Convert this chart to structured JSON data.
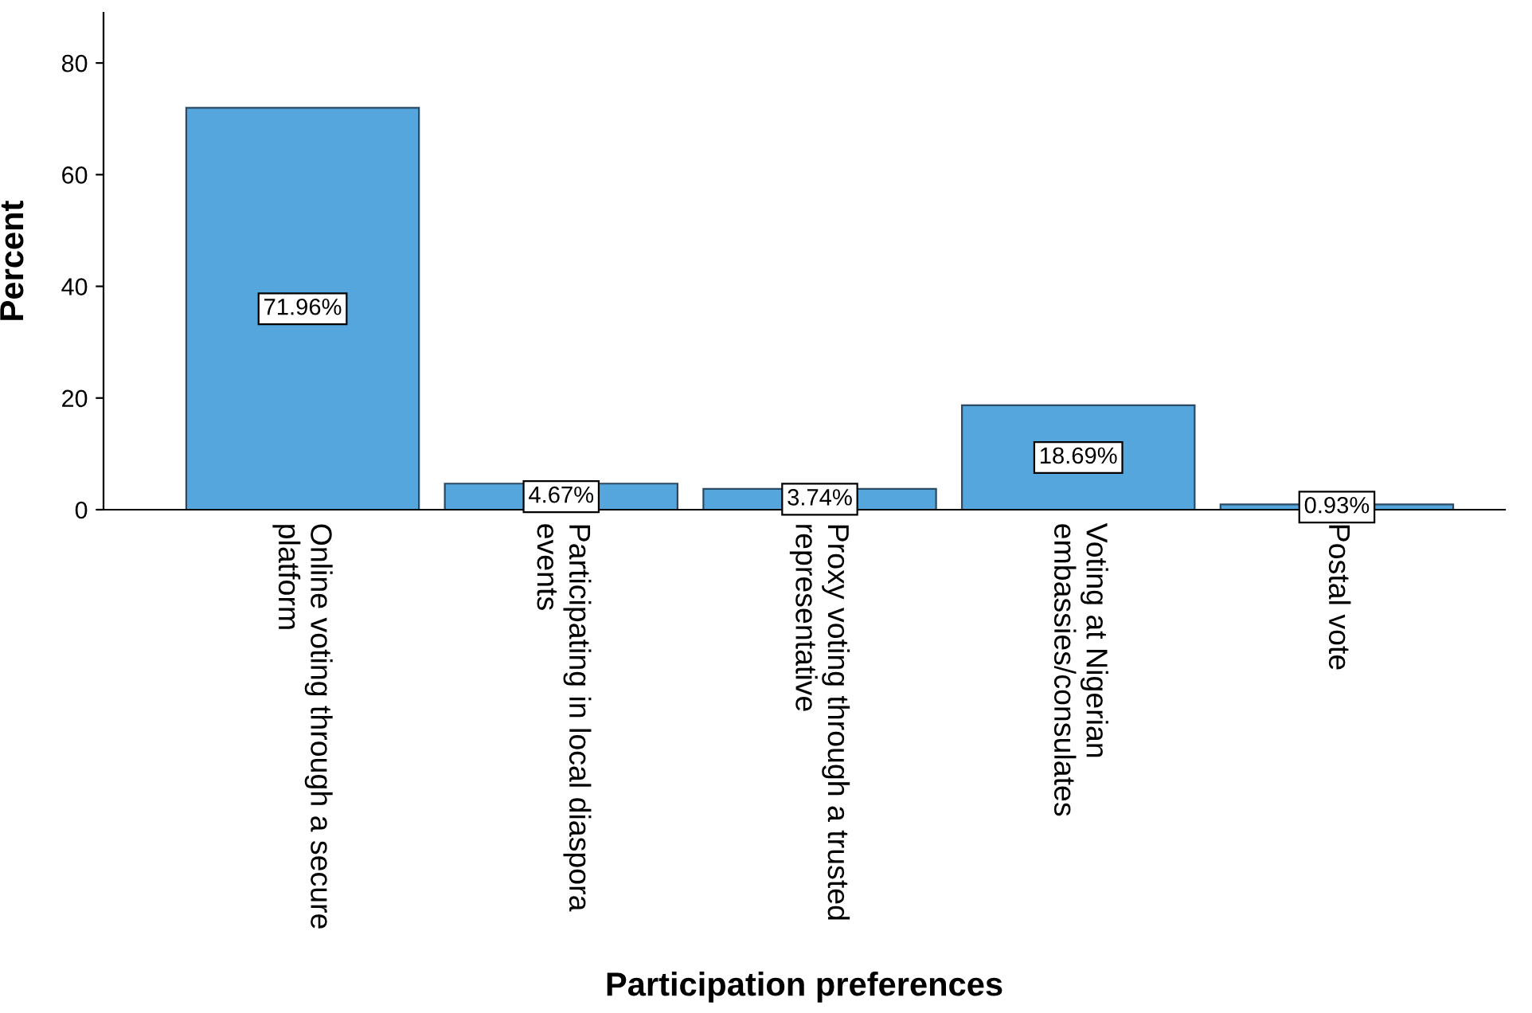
{
  "chart_data": {
    "type": "bar",
    "categories": [
      "Online voting through a secure\nplatform",
      "Participating in local diaspora\nevents",
      "Proxy voting through a trusted\nrepresentative",
      "Voting at Nigerian\nembassies/consulates",
      "Postal vote"
    ],
    "values": [
      71.96,
      4.67,
      3.74,
      18.69,
      0.93
    ],
    "value_labels": [
      "71.96%",
      "4.67%",
      "3.74%",
      "18.69%",
      "0.93%"
    ],
    "color": "#55a6dc",
    "xlabel": "Participation preferences",
    "ylabel": "Percent",
    "ylim": [
      0,
      89
    ],
    "yticks": [
      0,
      20,
      40,
      60,
      80
    ],
    "grid": false,
    "legend": false
  }
}
